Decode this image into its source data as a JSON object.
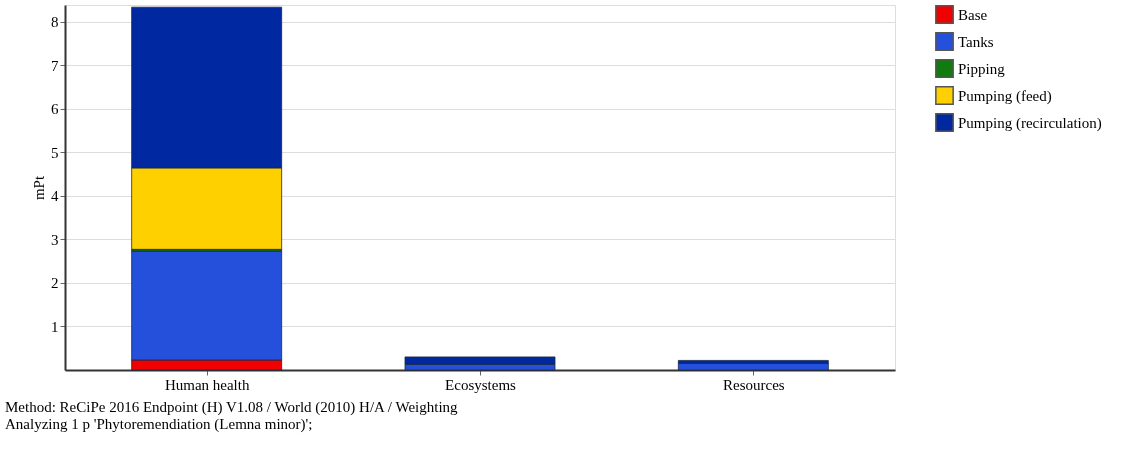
{
  "chart_data": {
    "type": "bar",
    "stacked": true,
    "ylabel": "mPt",
    "categories": [
      "Human health",
      "Ecosystems",
      "Resources"
    ],
    "series": [
      {
        "name": "Base",
        "color": "#f00000",
        "values": [
          0.23,
          null,
          null
        ]
      },
      {
        "name": "Tanks",
        "color": "#2550dc",
        "values": [
          2.5,
          0.13,
          0.15
        ]
      },
      {
        "name": "Pipping",
        "color": "#107c10",
        "values": [
          0.04,
          null,
          null
        ]
      },
      {
        "name": "Pumping (feed)",
        "color": "#ffd000",
        "values": [
          1.87,
          null,
          null
        ]
      },
      {
        "name": "Pumping (recirculation)",
        "color": "#0028a0",
        "values": [
          3.69,
          0.17,
          0.07
        ]
      }
    ],
    "ylim": [
      0,
      8.38
    ],
    "yticks": [
      1,
      2,
      3,
      4,
      5,
      6,
      7,
      8
    ],
    "grid": "y",
    "legend": "top right",
    "annotations": [
      "Method: ReCiPe 2016 Endpoint (H) V1.08 / World (2010) H/A / Weighting",
      "Analyzing 1 p 'Phytoremendiation (Lemna minor)';"
    ]
  }
}
